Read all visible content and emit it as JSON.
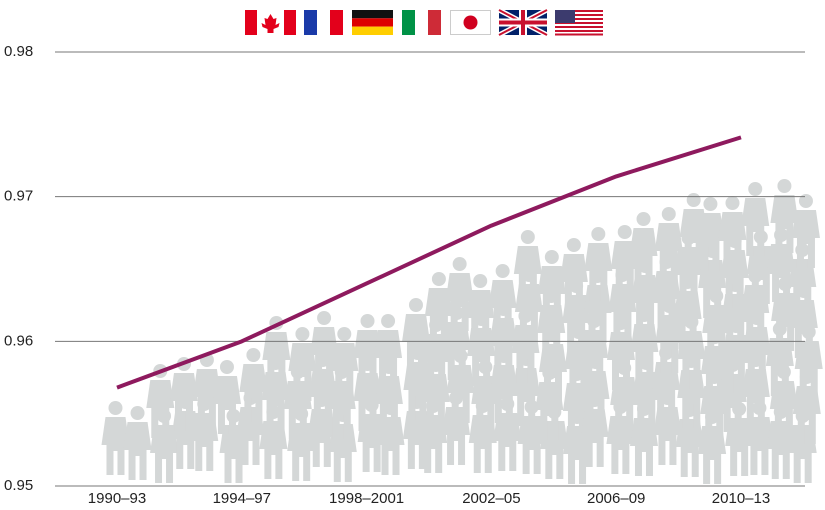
{
  "chart_data": {
    "type": "line",
    "categories": [
      "1990–93",
      "1994–97",
      "1998–2001",
      "2002–05",
      "2006–09",
      "2010–13"
    ],
    "series": [
      {
        "color": "#8e1a5e",
        "values": [
          0.9568,
          0.96,
          0.964,
          0.968,
          0.9714,
          0.9741
        ]
      }
    ],
    "ylim": [
      0.95,
      0.98
    ],
    "yticks": [
      0.95,
      0.96,
      0.97,
      0.98
    ],
    "grid": true
  }
}
